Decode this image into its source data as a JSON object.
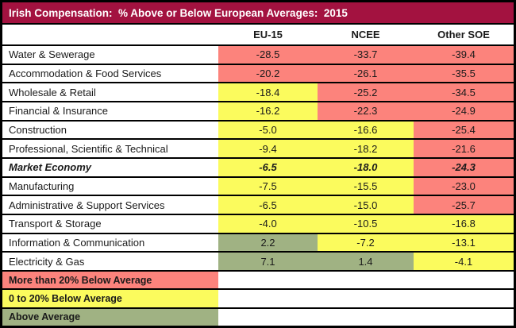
{
  "colors": {
    "title_bg": "#A31240",
    "title_text": "#FFFFFF",
    "band_red": "#FC837C",
    "band_yellow": "#FBFB5D",
    "band_green": "#A0B283",
    "grid": "#000000",
    "text": "#1A1A1A"
  },
  "chart_data": {
    "type": "table",
    "title": "Irish Compensation:  % Above or Below European Averages:  2015",
    "columns": [
      "EU-15",
      "NCEE",
      "Other SOE"
    ],
    "rows": [
      {
        "label": "Water & Sewerage",
        "values": [
          -28.5,
          -33.7,
          -39.4
        ],
        "emphasis": false
      },
      {
        "label": "Accommodation & Food Services",
        "values": [
          -20.2,
          -26.1,
          -35.5
        ],
        "emphasis": false
      },
      {
        "label": "Wholesale & Retail",
        "values": [
          -18.4,
          -25.2,
          -34.5
        ],
        "emphasis": false
      },
      {
        "label": "Financial & Insurance",
        "values": [
          -16.2,
          -22.3,
          -24.9
        ],
        "emphasis": false
      },
      {
        "label": "Construction",
        "values": [
          -5.0,
          -16.6,
          -25.4
        ],
        "emphasis": false
      },
      {
        "label": "Professional, Scientific & Technical",
        "values": [
          -9.4,
          -18.2,
          -21.6
        ],
        "emphasis": false
      },
      {
        "label": "Market Economy",
        "values": [
          -6.5,
          -18.0,
          -24.3
        ],
        "emphasis": true
      },
      {
        "label": "Manufacturing",
        "values": [
          -7.5,
          -15.5,
          -23.0
        ],
        "emphasis": false
      },
      {
        "label": "Administrative & Support Services",
        "values": [
          -6.5,
          -15.0,
          -25.7
        ],
        "emphasis": false
      },
      {
        "label": "Transport & Storage",
        "values": [
          -4.0,
          -10.5,
          -16.8
        ],
        "emphasis": false
      },
      {
        "label": "Information & Communication",
        "values": [
          2.2,
          -7.2,
          -13.1
        ],
        "emphasis": false
      },
      {
        "label": "Electricity & Gas",
        "values": [
          7.1,
          1.4,
          -4.1
        ],
        "emphasis": false
      }
    ],
    "legend": [
      {
        "label": "More than 20% Below Average",
        "band": "red"
      },
      {
        "label": "0 to 20% Below Average",
        "band": "yellow"
      },
      {
        "label": "Above Average",
        "band": "green"
      }
    ]
  }
}
